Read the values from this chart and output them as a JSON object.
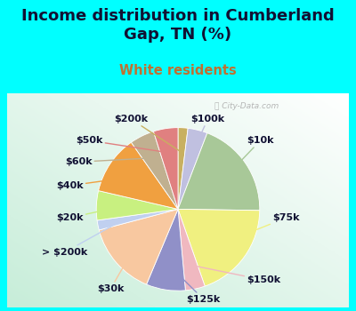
{
  "title": "Income distribution in Cumberland\nGap, TN (%)",
  "subtitle": "White residents",
  "bg_color": "#00FFFF",
  "labels": [
    "$200k",
    "$100k",
    "$10k",
    "$75k",
    "$150k",
    "$125k",
    "$30k",
    "> $200k",
    "$20k",
    "$40k",
    "$60k",
    "$50k"
  ],
  "values": [
    2,
    4,
    20,
    20,
    4,
    8,
    15,
    2,
    6,
    12,
    5,
    5
  ],
  "colors": [
    "#c8b060",
    "#c0c0e0",
    "#a8c898",
    "#f0f080",
    "#f0b8c0",
    "#9090c8",
    "#f8c8a0",
    "#c0d0f0",
    "#c8f080",
    "#f0a040",
    "#c0b090",
    "#e08080"
  ],
  "label_fontsize": 8,
  "title_fontsize": 13,
  "subtitle_fontsize": 10.5,
  "title_color": "#111133",
  "subtitle_color": "#c07030",
  "watermark": "ⓘ City-Data.com"
}
